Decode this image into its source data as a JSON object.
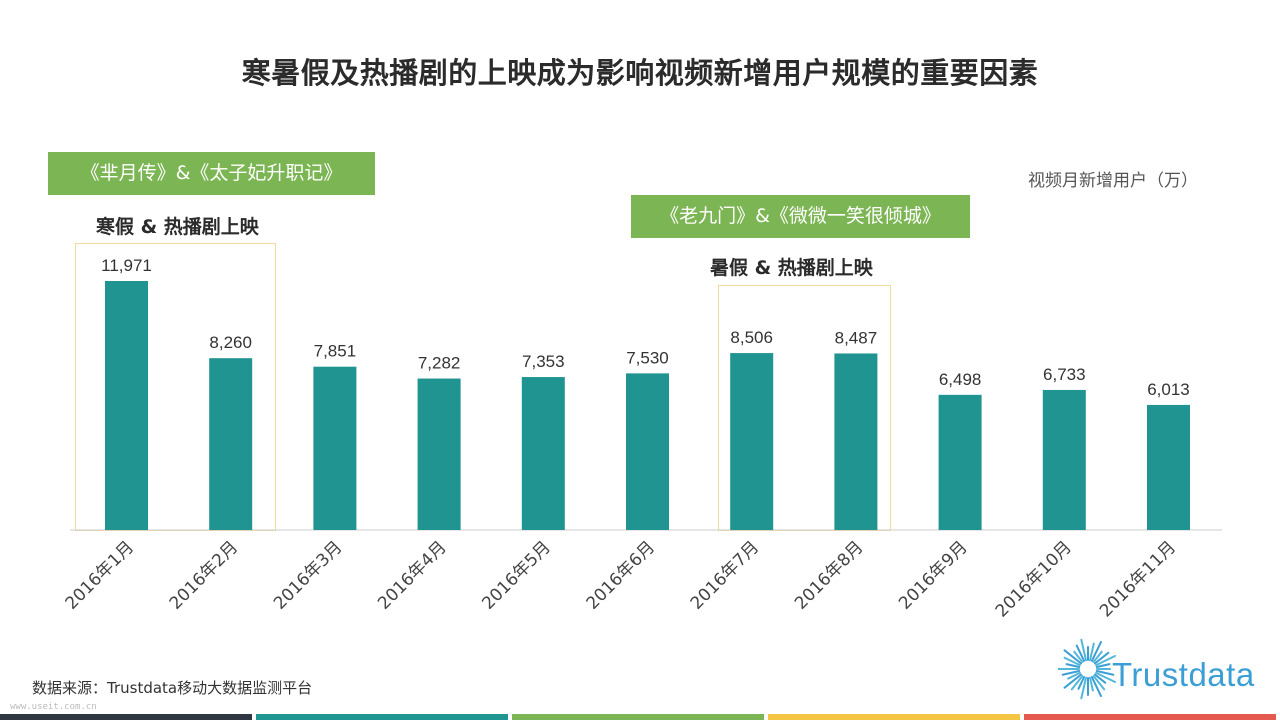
{
  "title": "寒暑假及热播剧的上映成为影响视频新增用户规模的重要因素",
  "annotations": {
    "winter_dramas": "《芈月传》&《太子妃升职记》",
    "winter_label": "寒假 & 热播剧上映",
    "summer_dramas": "《老九门》&《微微一笑很倾城》",
    "summer_label": "暑假 & 热播剧上映"
  },
  "unit_label": "视频月新增用户（万）",
  "source": "数据来源：Trustdata移动大数据监测平台",
  "watermark": "www.useit.com.cn",
  "logo_text": "Trustdata",
  "colors": {
    "bar": "#1f9490",
    "axis": "#cccccc",
    "green_box": "#7cb553",
    "highlight_border": "#f2dc9a",
    "stripes": [
      "#2f3742",
      "#1f9490",
      "#7cb553",
      "#f4c542",
      "#e45a4e"
    ]
  },
  "chart_data": {
    "type": "bar",
    "categories": [
      "2016年1月",
      "2016年2月",
      "2016年3月",
      "2016年4月",
      "2016年5月",
      "2016年6月",
      "2016年7月",
      "2016年8月",
      "2016年9月",
      "2016年10月",
      "2016年11月"
    ],
    "values": [
      11971,
      8260,
      7851,
      7282,
      7353,
      7530,
      8506,
      8487,
      6498,
      6733,
      6013
    ],
    "value_labels": [
      "11,971",
      "8,260",
      "7,851",
      "7,282",
      "7,353",
      "7,530",
      "8,506",
      "8,487",
      "6,498",
      "6,733",
      "6,013"
    ],
    "ylim": [
      0,
      12000
    ],
    "ylabel": "视频月新增用户（万）",
    "grid": false,
    "legend": "none"
  }
}
